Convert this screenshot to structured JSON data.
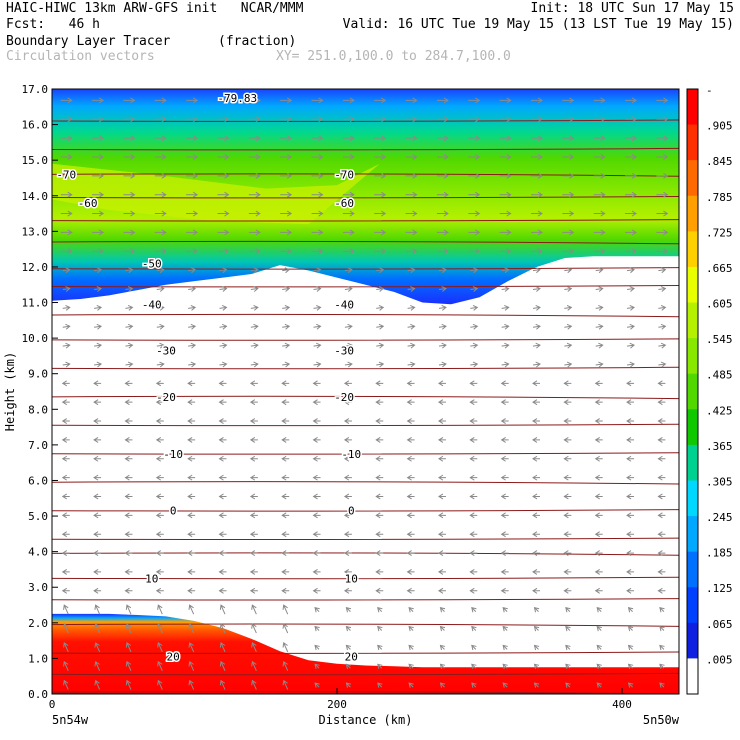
{
  "header": {
    "model_line": "HAIC-HIWC 13km ARW-GFS init   NCAR/MMM",
    "init_line": "Init: 18 UTC Sun 17 May 15",
    "fcst_line": "Fcst:   46 h",
    "valid_line": "Valid: 16 UTC Tue 19 May 15 (13 LST Tue 19 May 15)",
    "field_name": "Boundary Layer Tracer",
    "field_units": "(fraction)",
    "vector_label": "Circulation vectors",
    "xy_label": "XY= 251.0,100.0 to 284.7,100.0"
  },
  "chart_data": {
    "type": "heatmap",
    "title": "Boundary Layer Tracer (fraction)",
    "xlabel": "Distance (km)",
    "ylabel": "Height (km)",
    "xlim": [
      0,
      440
    ],
    "ylim": [
      0,
      17
    ],
    "x_ticks": [
      0,
      200,
      400
    ],
    "y_ticks": [
      0.0,
      1.0,
      2.0,
      3.0,
      4.0,
      5.0,
      6.0,
      7.0,
      8.0,
      9.0,
      10.0,
      11.0,
      12.0,
      13.0,
      14.0,
      15.0,
      16.0,
      17.0
    ],
    "x_end_labels": [
      "5n54w",
      "5n50w"
    ],
    "colorbar": {
      "labels": [
        "-",
        ".905",
        ".845",
        ".785",
        ".725",
        ".665",
        ".605",
        ".545",
        ".485",
        ".425",
        ".365",
        ".305",
        ".245",
        ".185",
        ".125",
        ".065",
        ".005"
      ],
      "colors": [
        "#ff0000",
        "#ff3000",
        "#ff6a00",
        "#ffa000",
        "#ffd000",
        "#e8ff00",
        "#b4f000",
        "#88e800",
        "#50d800",
        "#10c800",
        "#00d090",
        "#00d8ff",
        "#00a8ff",
        "#0070ff",
        "#0040ff",
        "#1020e0",
        "#ffffff"
      ]
    },
    "temperature_contours": {
      "color": "#8b1a1a",
      "labels": [
        "-79.83",
        "-70",
        "-70",
        "-60",
        "-60",
        "-50",
        "-40",
        "-40",
        "-30",
        "-30",
        "-20",
        "-20",
        "-10",
        "-10",
        "0",
        "0",
        "10",
        "10",
        "20",
        "20"
      ]
    },
    "vectors": {
      "color": "#8a8a8a"
    },
    "tracer_boundaries_km": {
      "x": [
        0,
        20,
        40,
        60,
        80,
        100,
        120,
        140,
        160,
        180,
        200,
        220,
        240,
        260,
        280,
        300,
        320,
        340,
        360,
        380,
        400,
        420,
        440
      ],
      "upper_base": [
        11.05,
        11.1,
        11.2,
        11.35,
        11.5,
        11.6,
        11.7,
        11.8,
        12.05,
        11.9,
        11.7,
        11.5,
        11.3,
        11.0,
        10.95,
        11.15,
        11.6,
        12.0,
        12.25,
        12.3,
        12.3,
        12.3,
        12.3
      ],
      "lower_top": [
        2.25,
        2.25,
        2.25,
        2.22,
        2.18,
        2.05,
        1.85,
        1.55,
        1.2,
        0.95,
        0.85,
        0.8,
        0.78,
        0.75,
        0.75,
        0.75,
        0.75,
        0.75,
        0.75,
        0.75,
        0.75,
        0.75,
        0.75
      ]
    }
  }
}
